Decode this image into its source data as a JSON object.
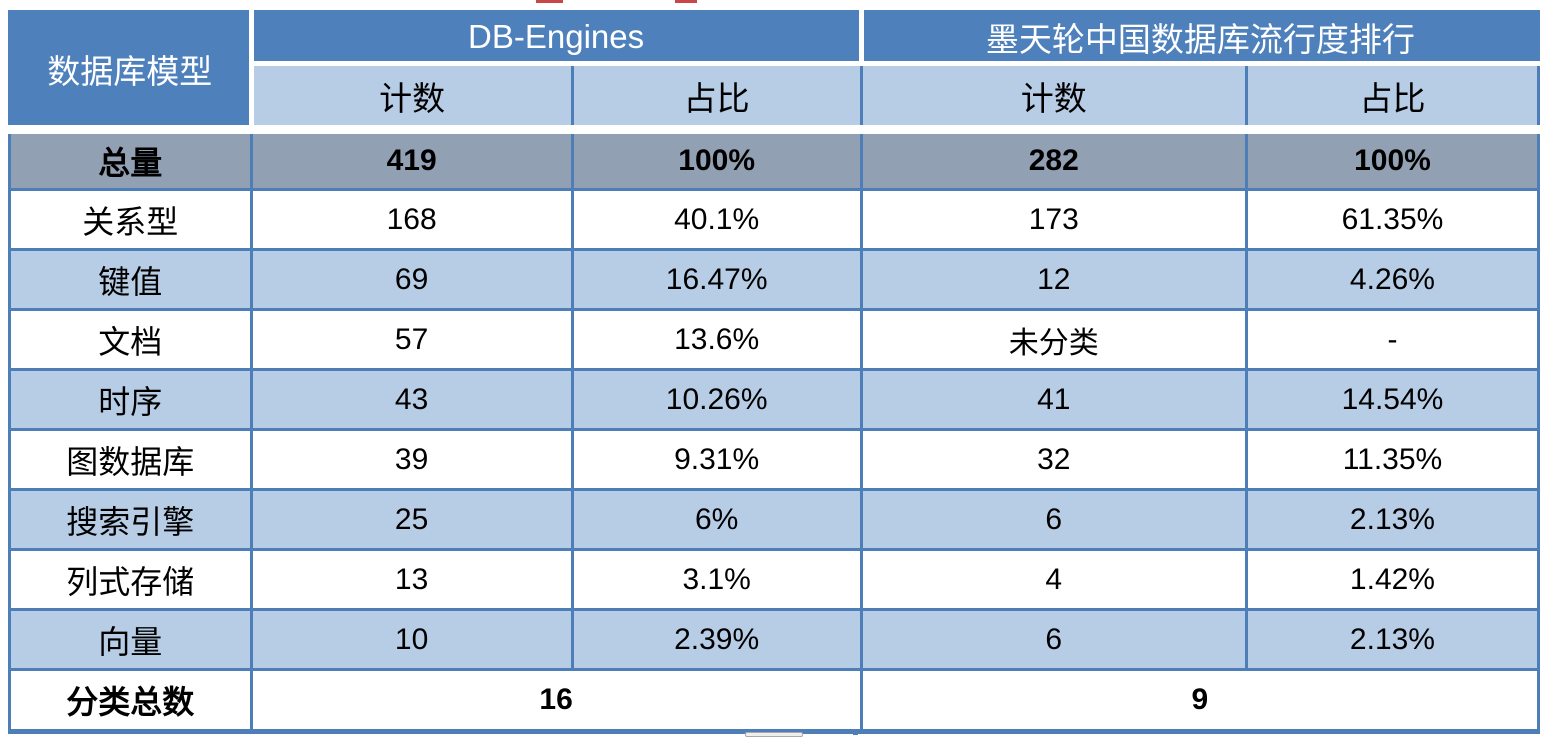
{
  "chart_data": {
    "type": "table",
    "header": {
      "model": "数据库模型",
      "group1": "DB-Engines",
      "group2": "墨天轮中国数据库流行度排行",
      "sub": [
        "计数",
        "占比",
        "计数",
        "占比"
      ]
    },
    "rows": [
      {
        "model": "总量",
        "db_engines_count": "419",
        "db_engines_share": "100%",
        "modb_count": "282",
        "modb_share": "100%"
      },
      {
        "model": "关系型",
        "db_engines_count": "168",
        "db_engines_share": "40.1%",
        "modb_count": "173",
        "modb_share": "61.35%"
      },
      {
        "model": "键值",
        "db_engines_count": "69",
        "db_engines_share": "16.47%",
        "modb_count": "12",
        "modb_share": "4.26%"
      },
      {
        "model": "文档",
        "db_engines_count": "57",
        "db_engines_share": "13.6%",
        "modb_count": "未分类",
        "modb_share": "-"
      },
      {
        "model": "时序",
        "db_engines_count": "43",
        "db_engines_share": "10.26%",
        "modb_count": "41",
        "modb_share": "14.54%"
      },
      {
        "model": "图数据库",
        "db_engines_count": "39",
        "db_engines_share": "9.31%",
        "modb_count": "32",
        "modb_share": "11.35%"
      },
      {
        "model": "搜索引擎",
        "db_engines_count": "25",
        "db_engines_share": "6%",
        "modb_count": "6",
        "modb_share": "2.13%"
      },
      {
        "model": "列式存储",
        "db_engines_count": "13",
        "db_engines_share": "3.1%",
        "modb_count": "4",
        "modb_share": "1.42%"
      },
      {
        "model": "向量",
        "db_engines_count": "10",
        "db_engines_share": "2.39%",
        "modb_count": "6",
        "modb_share": "2.13%"
      }
    ],
    "footer": {
      "model": "分类总数",
      "db_engines_total": "16",
      "modb_total": "9"
    }
  },
  "colors": {
    "header_blue": "#4e80bc",
    "light_blue": "#b7cce5",
    "total_row_gray": "#92a0b3",
    "border_blue": "#4e7eb8",
    "red_fragment": "#c94747"
  }
}
